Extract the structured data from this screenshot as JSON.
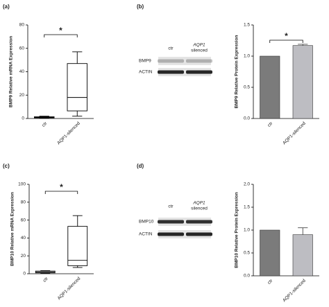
{
  "chart_data": [
    {
      "type": "box",
      "panel_label": "(a)",
      "ylabel": "BMP9 Relative mRNA Expression",
      "categories": [
        "ctr",
        "AQP1-silenced"
      ],
      "boxes": [
        {
          "min": 0.3,
          "q1": 0.6,
          "median": 1,
          "q3": 1.5,
          "max": 2
        },
        {
          "min": 2,
          "q1": 6.5,
          "median": 18,
          "q3": 47,
          "max": 57
        }
      ],
      "ylim": [
        0,
        80
      ],
      "yticks": [
        0,
        20,
        40,
        60,
        80
      ],
      "annotation": "*",
      "color": "#ffffff"
    },
    {
      "type": "bar",
      "ylabel": "BMP9 Relative Protein Expression",
      "categories": [
        "ctr",
        "AQP1-silenced"
      ],
      "values": [
        1.0,
        1.17
      ],
      "errors": [
        0,
        0.02
      ],
      "colors": [
        "#7b7b7b",
        "#bdbdc2"
      ],
      "ylim": [
        0,
        1.5
      ],
      "yticks": [
        {
          "value": 0,
          "label": "0.0"
        },
        0.5,
        {
          "value": 1,
          "label": "1.0"
        },
        1.5
      ],
      "annotation": "*"
    },
    {
      "type": "box",
      "panel_label": "(c)",
      "ylabel": "BMP10 Relative mRNA Expression",
      "categories": [
        "ctr",
        "AQP1-silenced"
      ],
      "boxes": [
        {
          "min": 0.5,
          "q1": 1,
          "median": 2,
          "q3": 3,
          "max": 3.5
        },
        {
          "min": 7,
          "q1": 9,
          "median": 15,
          "q3": 53,
          "max": 65
        }
      ],
      "ylim": [
        0,
        100
      ],
      "yticks": [
        0,
        20,
        40,
        60,
        80,
        100
      ],
      "annotation": "*",
      "color": "#ffffff"
    },
    {
      "type": "bar",
      "ylabel": "BMP10 Relative Protein Expression",
      "categories": [
        "ctr",
        "AQP1-silenced"
      ],
      "values": [
        1.0,
        0.9
      ],
      "errors": [
        0,
        0.15
      ],
      "colors": [
        "#7b7b7b",
        "#bdbdc2"
      ],
      "ylim": [
        0,
        2
      ],
      "yticks": [
        {
          "value": 0,
          "label": "0.0"
        },
        0.5,
        {
          "value": 1,
          "label": "1.0"
        },
        1.5,
        {
          "value": 2,
          "label": "2.0"
        }
      ]
    }
  ],
  "blots": [
    {
      "panel_label": "(b)",
      "lanes": [
        {
          "label": "ctr"
        },
        {
          "label": "AQP1",
          "sublabel": "silenced"
        }
      ],
      "rows": [
        "BMP9",
        "ACTIN"
      ]
    },
    {
      "panel_label": "(d)",
      "lanes": [
        {
          "label": "ctr"
        },
        {
          "label": "AQP1",
          "sublabel": "silenced"
        }
      ],
      "rows": [
        "BMP10",
        "ACTIN"
      ]
    }
  ]
}
